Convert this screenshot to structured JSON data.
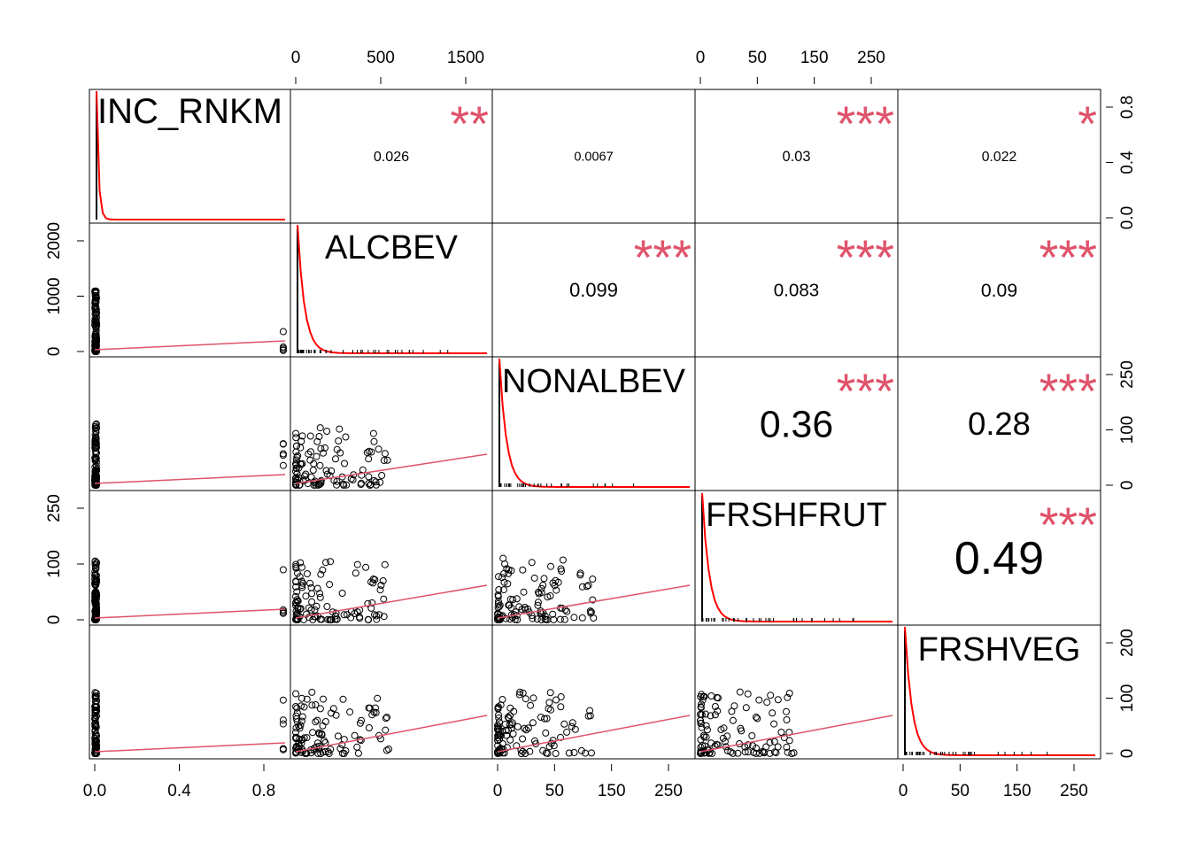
{
  "chart_data": {
    "type": "scatter",
    "subtype": "correlation-matrix",
    "variables": [
      "INC_RNKM",
      "ALCBEV",
      "NONALBEV",
      "FRSHFRUT",
      "FRSHVEG"
    ],
    "correlations": [
      {
        "row": 0,
        "col": 1,
        "value": "0.026",
        "stars": "**"
      },
      {
        "row": 0,
        "col": 2,
        "value": "0.0067",
        "stars": ""
      },
      {
        "row": 0,
        "col": 3,
        "value": "0.03",
        "stars": "***"
      },
      {
        "row": 0,
        "col": 4,
        "value": "0.022",
        "stars": "*"
      },
      {
        "row": 1,
        "col": 2,
        "value": "0.099",
        "stars": "***"
      },
      {
        "row": 1,
        "col": 3,
        "value": "0.083",
        "stars": "***"
      },
      {
        "row": 1,
        "col": 4,
        "value": "0.09",
        "stars": "***"
      },
      {
        "row": 2,
        "col": 3,
        "value": "0.36",
        "stars": "***"
      },
      {
        "row": 2,
        "col": 4,
        "value": "0.28",
        "stars": "***"
      },
      {
        "row": 3,
        "col": 4,
        "value": "0.49",
        "stars": "***"
      }
    ],
    "axes": {
      "bottom": [
        {
          "col": 0,
          "ticks": [
            "0.0",
            "0.4",
            "0.8"
          ]
        },
        {
          "col": 2,
          "ticks": [
            "0",
            "50",
            "150",
            "250"
          ]
        },
        {
          "col": 4,
          "ticks": [
            "0",
            "50",
            "150",
            "250"
          ]
        }
      ],
      "top": [
        {
          "col": 1,
          "ticks": [
            "0",
            "500",
            "1500"
          ]
        },
        {
          "col": 3,
          "ticks": [
            "0",
            "50",
            "150",
            "250"
          ]
        }
      ],
      "left": [
        {
          "row": 1,
          "ticks": [
            "0",
            "1000",
            "2000"
          ]
        },
        {
          "row": 3,
          "ticks": [
            "0",
            "100",
            "250"
          ]
        }
      ],
      "right": [
        {
          "row": 0,
          "ticks": [
            "0.0",
            "0.4",
            "0.8"
          ]
        },
        {
          "row": 2,
          "ticks": [
            "0",
            "100",
            "250"
          ]
        },
        {
          "row": 4,
          "ticks": [
            "0",
            "100",
            "200"
          ]
        }
      ]
    },
    "ranges": [
      [
        0,
        1
      ],
      [
        0,
        2200
      ],
      [
        0,
        280
      ],
      [
        0,
        280
      ],
      [
        0,
        250
      ]
    ],
    "colors": {
      "stars": "#DF536B",
      "smooth": "#DF536B",
      "density": "#FF0000",
      "points": "#000000"
    }
  }
}
